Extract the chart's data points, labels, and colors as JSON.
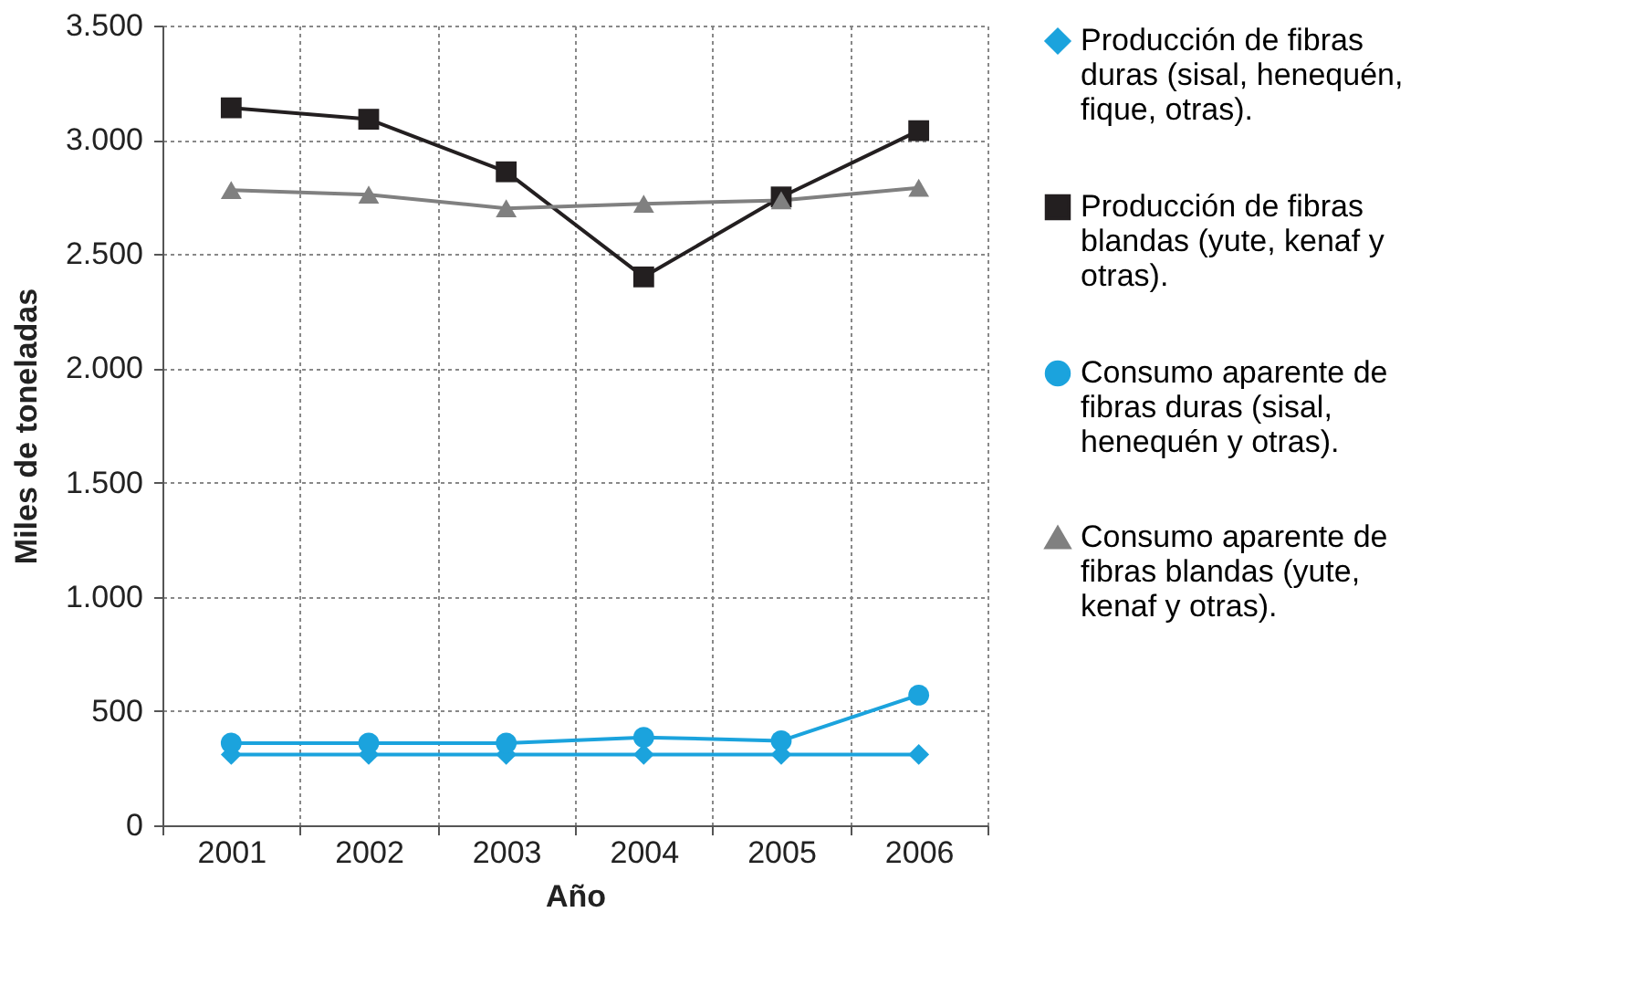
{
  "chart_data": {
    "type": "line",
    "xlabel": "Año",
    "ylabel": "Miles de toneladas",
    "categories": [
      "2001",
      "2002",
      "2003",
      "2004",
      "2005",
      "2006"
    ],
    "series": [
      {
        "name": "Producción de fibras duras (sisal, henequén, fique, otras).",
        "color": "#1ba3dd",
        "marker": "diamond",
        "values": [
          310,
          310,
          310,
          310,
          310,
          310
        ]
      },
      {
        "name": "Producción de fibras blandas (yute, kenaf y otras).",
        "color": "#231f20",
        "marker": "square",
        "values": [
          3140,
          3090,
          2860,
          2400,
          2750,
          3040
        ]
      },
      {
        "name": "Consumo aparente de fibras duras (sisal, henequén y otras).",
        "color": "#1ba3dd",
        "marker": "circle",
        "values": [
          360,
          360,
          360,
          385,
          370,
          570
        ]
      },
      {
        "name": "Consumo aparente de fibras blandas (yute, kenaf y otras).",
        "color": "#808080",
        "marker": "triangle",
        "values": [
          2780,
          2760,
          2700,
          2720,
          2735,
          2790
        ]
      }
    ],
    "ylim": [
      0,
      3500
    ],
    "yticks": [
      0,
      500,
      {
        "value": 1000,
        "label": "1.000"
      },
      {
        "value": 1500,
        "label": "1.500"
      },
      {
        "value": 2000,
        "label": "2.000"
      },
      {
        "value": 2500,
        "label": "2.500"
      },
      {
        "value": 3000,
        "label": "3.000"
      },
      {
        "value": 3500,
        "label": "3.500"
      }
    ],
    "grid": true,
    "legend": "right",
    "line_style": "solid"
  }
}
